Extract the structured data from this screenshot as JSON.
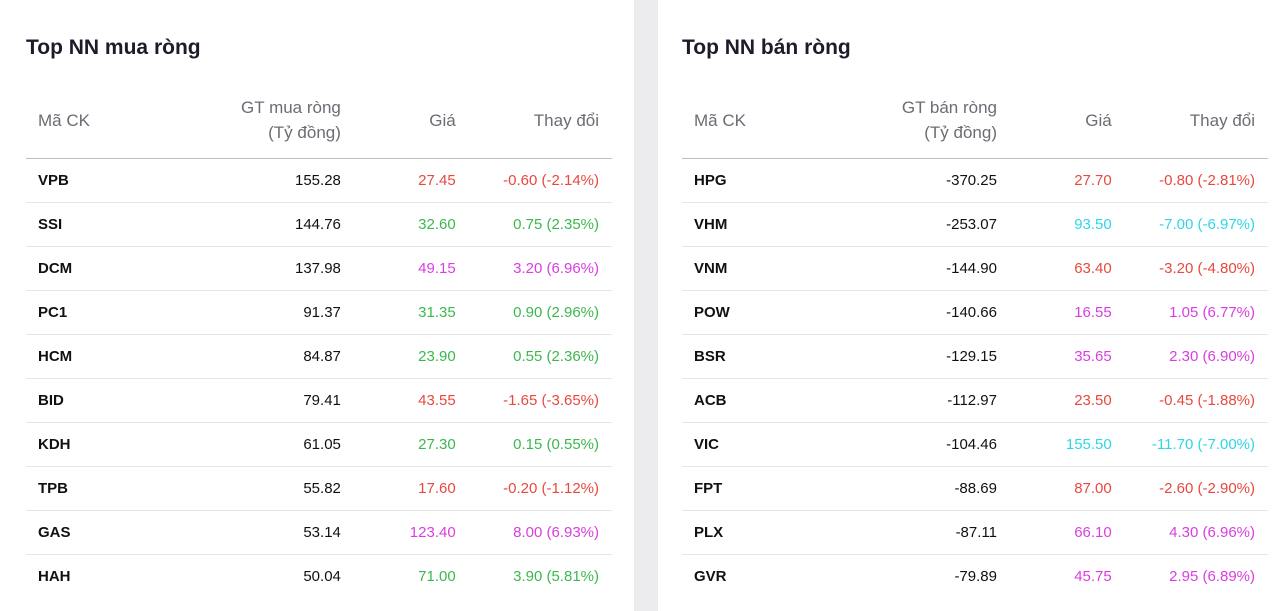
{
  "colors": {
    "red": "#e8483e",
    "green": "#3cb84f",
    "purple": "#d93ee0",
    "cyan": "#2fd6e6"
  },
  "buy": {
    "title": "Top NN mua ròng",
    "headers": {
      "code": "Mã CK",
      "value_line1": "GT mua ròng",
      "value_line2": "(Tỷ đồng)",
      "price": "Giá",
      "change": "Thay đổi"
    },
    "rows": [
      {
        "code": "VPB",
        "value": "155.28",
        "price": "27.45",
        "change": "-0.60 (-2.14%)",
        "color": "red"
      },
      {
        "code": "SSI",
        "value": "144.76",
        "price": "32.60",
        "change": "0.75 (2.35%)",
        "color": "green"
      },
      {
        "code": "DCM",
        "value": "137.98",
        "price": "49.15",
        "change": "3.20 (6.96%)",
        "color": "purple"
      },
      {
        "code": "PC1",
        "value": "91.37",
        "price": "31.35",
        "change": "0.90 (2.96%)",
        "color": "green"
      },
      {
        "code": "HCM",
        "value": "84.87",
        "price": "23.90",
        "change": "0.55 (2.36%)",
        "color": "green"
      },
      {
        "code": "BID",
        "value": "79.41",
        "price": "43.55",
        "change": "-1.65 (-3.65%)",
        "color": "red"
      },
      {
        "code": "KDH",
        "value": "61.05",
        "price": "27.30",
        "change": "0.15 (0.55%)",
        "color": "green"
      },
      {
        "code": "TPB",
        "value": "55.82",
        "price": "17.60",
        "change": "-0.20 (-1.12%)",
        "color": "red"
      },
      {
        "code": "GAS",
        "value": "53.14",
        "price": "123.40",
        "change": "8.00 (6.93%)",
        "color": "purple"
      },
      {
        "code": "HAH",
        "value": "50.04",
        "price": "71.00",
        "change": "3.90 (5.81%)",
        "color": "green"
      }
    ]
  },
  "sell": {
    "title": "Top NN bán ròng",
    "headers": {
      "code": "Mã CK",
      "value_line1": "GT bán ròng",
      "value_line2": "(Tỷ đồng)",
      "price": "Giá",
      "change": "Thay đổi"
    },
    "rows": [
      {
        "code": "HPG",
        "value": "-370.25",
        "price": "27.70",
        "change": "-0.80 (-2.81%)",
        "color": "red"
      },
      {
        "code": "VHM",
        "value": "-253.07",
        "price": "93.50",
        "change": "-7.00 (-6.97%)",
        "color": "cyan"
      },
      {
        "code": "VNM",
        "value": "-144.90",
        "price": "63.40",
        "change": "-3.20 (-4.80%)",
        "color": "red"
      },
      {
        "code": "POW",
        "value": "-140.66",
        "price": "16.55",
        "change": "1.05 (6.77%)",
        "color": "purple"
      },
      {
        "code": "BSR",
        "value": "-129.15",
        "price": "35.65",
        "change": "2.30 (6.90%)",
        "color": "purple"
      },
      {
        "code": "ACB",
        "value": "-112.97",
        "price": "23.50",
        "change": "-0.45 (-1.88%)",
        "color": "red"
      },
      {
        "code": "VIC",
        "value": "-104.46",
        "price": "155.50",
        "change": "-11.70 (-7.00%)",
        "color": "cyan"
      },
      {
        "code": "FPT",
        "value": "-88.69",
        "price": "87.00",
        "change": "-2.60 (-2.90%)",
        "color": "red"
      },
      {
        "code": "PLX",
        "value": "-87.11",
        "price": "66.10",
        "change": "4.30 (6.96%)",
        "color": "purple"
      },
      {
        "code": "GVR",
        "value": "-79.89",
        "price": "45.75",
        "change": "2.95 (6.89%)",
        "color": "purple"
      }
    ]
  }
}
